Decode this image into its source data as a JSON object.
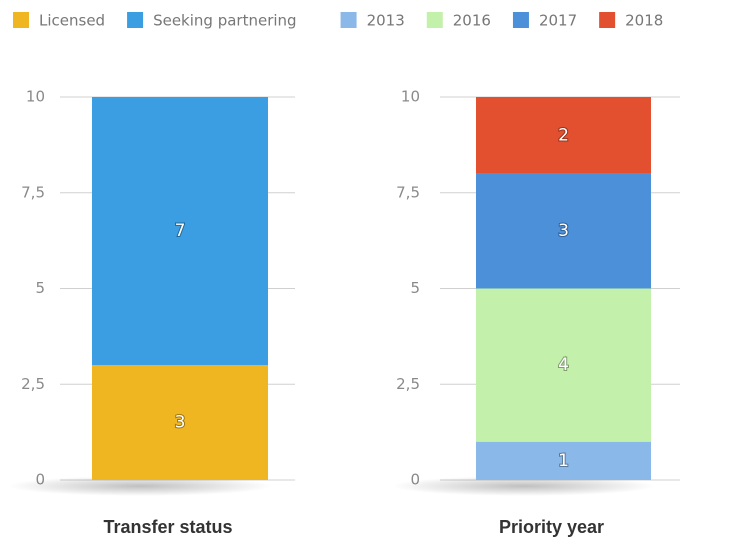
{
  "chart_data": [
    {
      "type": "stacked_bar",
      "xlabel": "Transfer status",
      "series": [
        {
          "name": "Licensed",
          "color": "#f0b622",
          "values": [
            3
          ]
        },
        {
          "name": "Seeking partnering",
          "color": "#3b9de2",
          "values": [
            7
          ]
        }
      ],
      "ylim": [
        0,
        10
      ],
      "yticks": [
        0,
        {
          "value": 2.5,
          "label": "2,5"
        },
        5,
        {
          "value": 7.5,
          "label": "7,5"
        },
        10
      ],
      "grid": true
    },
    {
      "type": "stacked_bar",
      "xlabel": "Priority year",
      "series": [
        {
          "name": "2013",
          "color": "#8ab9e9",
          "values": [
            1
          ]
        },
        {
          "name": "2016",
          "color": "#c3f1ab",
          "values": [
            4
          ]
        },
        {
          "name": "2017",
          "color": "#4c90d9",
          "values": [
            3
          ]
        },
        {
          "name": "2018",
          "color": "#e2502f",
          "values": [
            2
          ]
        }
      ],
      "ylim": [
        0,
        10
      ],
      "yticks": [
        0,
        {
          "value": 2.5,
          "label": "2,5"
        },
        5,
        {
          "value": 7.5,
          "label": "7,5"
        },
        10
      ],
      "grid": true
    }
  ]
}
